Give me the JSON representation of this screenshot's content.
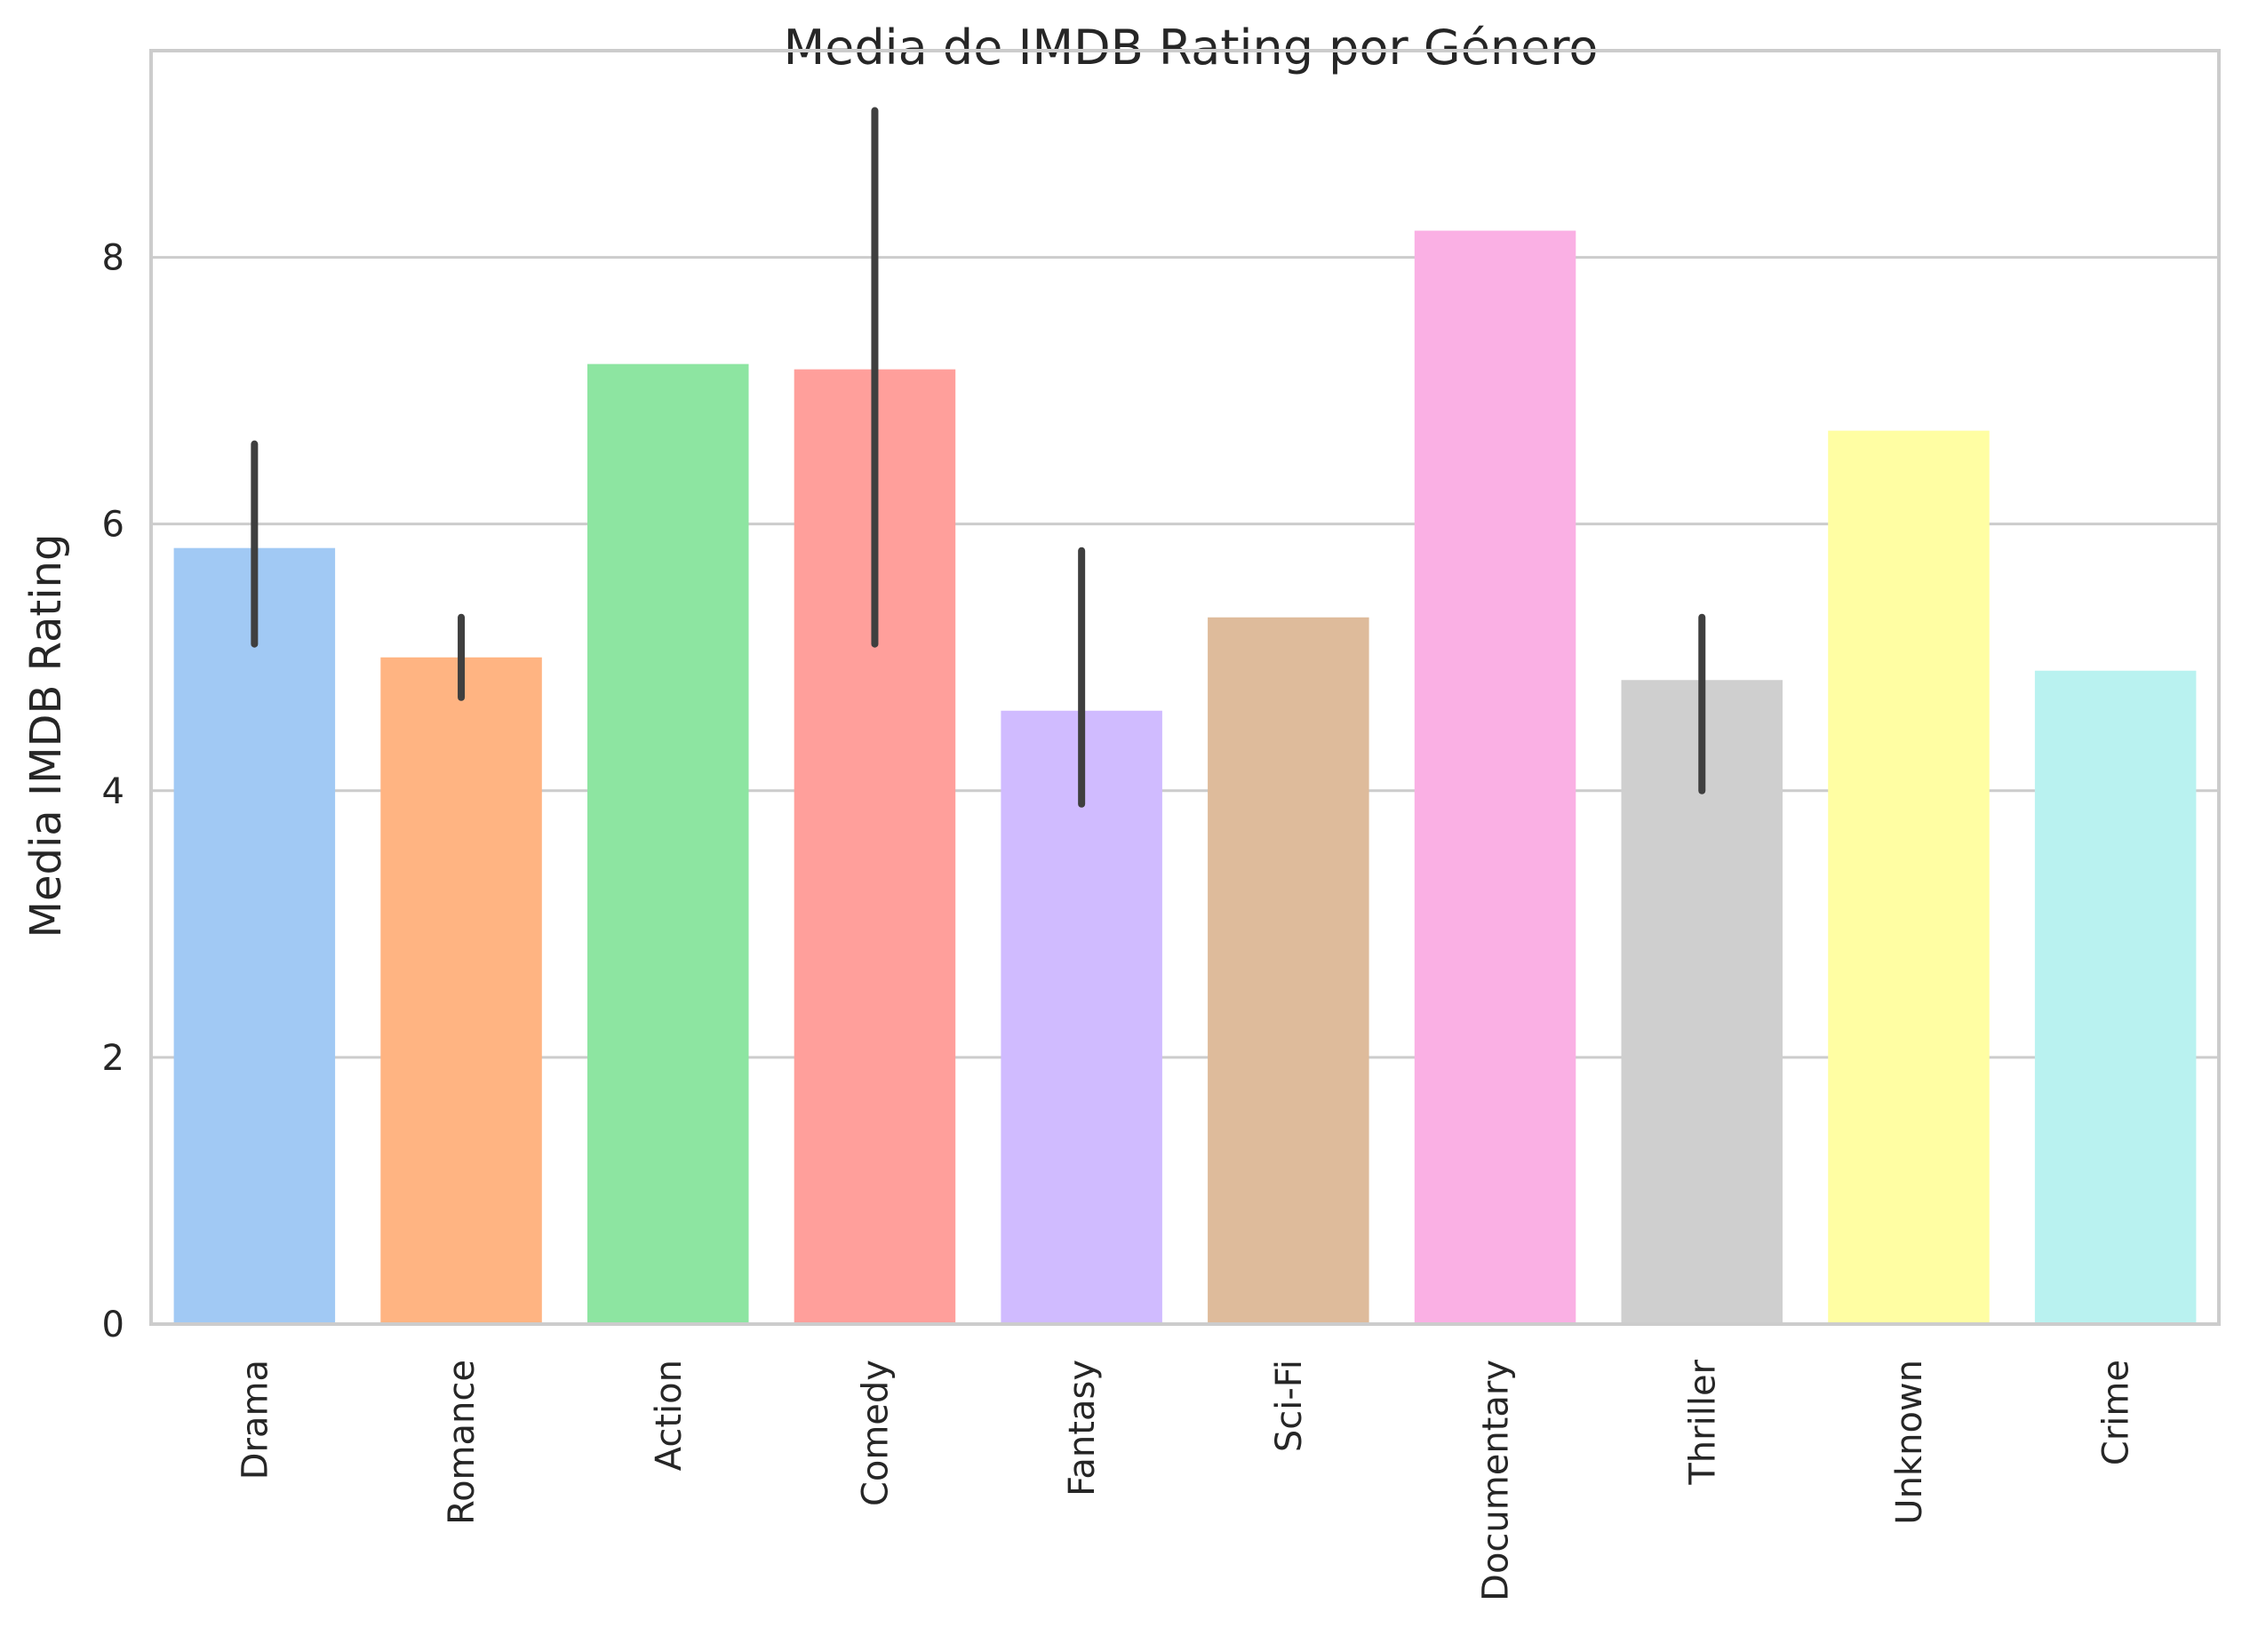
{
  "chart_data": {
    "type": "bar",
    "title": "Media de IMDB Rating por Género",
    "xlabel": "",
    "ylabel": "Media IMDB Rating",
    "categories": [
      "Drama",
      "Romance",
      "Action",
      "Comedy",
      "Fantasy",
      "Sci-Fi",
      "Documentary",
      "Thriller",
      "Unknown",
      "Crime"
    ],
    "values": [
      5.82,
      5.0,
      7.2,
      7.16,
      4.6,
      5.3,
      8.2,
      4.83,
      6.7,
      4.9
    ],
    "error_bars": [
      [
        5.1,
        6.6
      ],
      [
        4.7,
        5.3
      ],
      null,
      [
        5.1,
        9.1
      ],
      [
        3.9,
        5.8
      ],
      null,
      null,
      [
        4.0,
        5.3
      ],
      null,
      null
    ],
    "colors": [
      "#a1c9f4",
      "#ffb482",
      "#8de5a1",
      "#ff9f9b",
      "#d0bbff",
      "#debb9b",
      "#fab0e4",
      "#cfcfcf",
      "#fffea3",
      "#b9f2f0"
    ],
    "ylim": [
      0,
      9.55
    ],
    "yticks": [
      0,
      2,
      4,
      6,
      8
    ],
    "grid": true,
    "grid_axis": "y"
  }
}
